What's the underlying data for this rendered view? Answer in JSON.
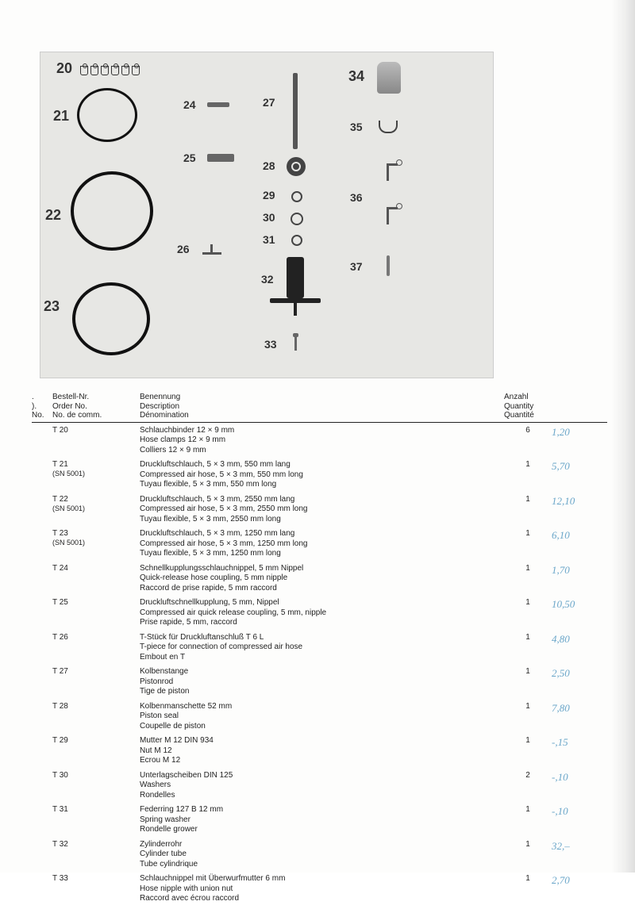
{
  "diagram": {
    "labels": {
      "n20": "20",
      "n21": "21",
      "n22": "22",
      "n23": "23",
      "n24": "24",
      "n25": "25",
      "n26": "26",
      "n27": "27",
      "n28": "28",
      "n29": "29",
      "n30": "30",
      "n31": "31",
      "n32": "32",
      "n33": "33",
      "n34": "34",
      "n35": "35",
      "n36": "36",
      "n37": "37"
    }
  },
  "headers": {
    "left": {
      "a": ".",
      "b": ").",
      "c": "No."
    },
    "order": {
      "a": "Bestell-Nr.",
      "b": "Order No.",
      "c": "No. de comm."
    },
    "desc": {
      "a": "Benennung",
      "b": "Description",
      "c": "Dénomination"
    },
    "qty": {
      "a": "Anzahl",
      "b": "Quantity",
      "c": "Quantité"
    }
  },
  "rows": [
    {
      "order": "T 20",
      "sub": "",
      "d1": "Schlauchbinder 12 × 9 mm",
      "d2": "Hose clamps 12 × 9 mm",
      "d3": "Colliers 12 × 9 mm",
      "qty": "6",
      "price": "1,20"
    },
    {
      "order": "T 21",
      "sub": "(SN 5001)",
      "d1": "Druckluftschlauch, 5 × 3 mm, 550 mm lang",
      "d2": "Compressed air hose, 5 × 3 mm, 550 mm long",
      "d3": "Tuyau flexible, 5 × 3 mm, 550 mm long",
      "qty": "1",
      "price": "5,70"
    },
    {
      "order": "T 22",
      "sub": "(SN 5001)",
      "d1": "Druckluftschlauch, 5 × 3 mm, 2550 mm lang",
      "d2": "Compressed air hose, 5 × 3 mm, 2550 mm long",
      "d3": "Tuyau flexible, 5 × 3 mm, 2550 mm long",
      "qty": "1",
      "price": "12,10"
    },
    {
      "order": "T 23",
      "sub": "(SN 5001)",
      "d1": "Druckluftschlauch, 5 × 3 mm, 1250 mm lang",
      "d2": "Compressed air hose, 5 × 3 mm, 1250 mm long",
      "d3": "Tuyau flexible, 5 × 3 mm, 1250 mm long",
      "qty": "1",
      "price": "6,10"
    },
    {
      "order": "T 24",
      "sub": "",
      "d1": "Schnellkupplungsschlauchnippel, 5 mm Nippel",
      "d2": "Quick-release hose coupling, 5 mm nipple",
      "d3": "Raccord de prise rapide, 5 mm raccord",
      "qty": "1",
      "price": "1,70"
    },
    {
      "order": "T 25",
      "sub": "",
      "d1": "Druckluftschnellkupplung, 5 mm, Nippel",
      "d2": "Compressed air quick release coupling, 5 mm, nipple",
      "d3": "Prise rapide, 5 mm, raccord",
      "qty": "1",
      "price": "10,50"
    },
    {
      "order": "T 26",
      "sub": "",
      "d1": "T-Stück für Druckluftanschluß T 6 L",
      "d2": "T-piece for connection of compressed air hose",
      "d3": "Embout en T",
      "qty": "1",
      "price": "4,80"
    },
    {
      "order": "T 27",
      "sub": "",
      "d1": "Kolbenstange",
      "d2": "Pistonrod",
      "d3": "Tige de piston",
      "qty": "1",
      "price": "2,50"
    },
    {
      "order": "T 28",
      "sub": "",
      "d1": "Kolbenmanschette 52 mm",
      "d2": "Piston seal",
      "d3": "Coupelle de piston",
      "qty": "1",
      "price": "7,80"
    },
    {
      "order": "T 29",
      "sub": "",
      "d1": "Mutter M 12 DIN 934",
      "d2": "Nut M 12",
      "d3": "Ecrou M 12",
      "qty": "1",
      "price": "-,15"
    },
    {
      "order": "T 30",
      "sub": "",
      "d1": "Unterlagscheiben DIN 125",
      "d2": "Washers",
      "d3": "Rondelles",
      "qty": "2",
      "price": "-,10"
    },
    {
      "order": "T 31",
      "sub": "",
      "d1": "Federring 127 B 12 mm",
      "d2": "Spring washer",
      "d3": "Rondelle grower",
      "qty": "1",
      "price": "-,10"
    },
    {
      "order": "T 32",
      "sub": "",
      "d1": "Zylinderrohr",
      "d2": "Cylinder tube",
      "d3": "Tube cylindrique",
      "qty": "1",
      "price": "32,–"
    },
    {
      "order": "T 33",
      "sub": "",
      "d1": "Schlauchnippel mit Überwurfmutter 6 mm",
      "d2": "Hose nipple with union nut",
      "d3": "Raccord avec écrou raccord",
      "qty": "1",
      "price": "2,70"
    }
  ]
}
